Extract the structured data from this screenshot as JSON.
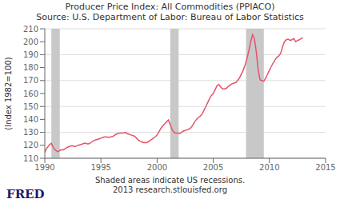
{
  "chart_data": {
    "type": "line",
    "title": "Producer Price Index: All Commodities (PPIACO)",
    "subtitle": "Source: U.S. Department of Labor: Bureau of Labor Statistics",
    "y_label": "(Index 1982=100)",
    "annotations": [
      "Shaded areas indicate US recessions.",
      "2013 research.stlouisfed.org",
      "FRED"
    ],
    "xlim": [
      1990,
      2015
    ],
    "ylim": [
      110,
      210
    ],
    "xticks": [
      1990,
      1995,
      2000,
      2005,
      2010,
      2015
    ],
    "yticks": [
      110,
      120,
      130,
      140,
      150,
      160,
      170,
      180,
      190,
      200,
      210
    ],
    "grid": true,
    "color": "#e8526a",
    "recession_color": "#c8c8c8",
    "recession_bands": [
      [
        1990.583,
        1991.333
      ],
      [
        2001.167,
        2001.917
      ],
      [
        2007.917,
        2009.5
      ]
    ],
    "x": [
      1990.0,
      1990.083,
      1990.167,
      1990.25,
      1990.333,
      1990.417,
      1990.5,
      1990.583,
      1990.667,
      1990.75,
      1990.833,
      1990.917,
      1991.0,
      1991.083,
      1991.167,
      1991.25,
      1991.333,
      1991.417,
      1991.5,
      1991.667,
      1991.75,
      1991.833,
      1991.917,
      1992.0,
      1992.167,
      1992.333,
      1992.5,
      1992.667,
      1992.833,
      1993.0,
      1993.167,
      1993.333,
      1993.5,
      1993.667,
      1993.833,
      1994.0,
      1994.167,
      1994.333,
      1994.5,
      1994.667,
      1994.833,
      1995.0,
      1995.167,
      1995.333,
      1995.5,
      1995.667,
      1995.833,
      1996.0,
      1996.167,
      1996.333,
      1996.5,
      1996.667,
      1996.833,
      1997.0,
      1997.167,
      1997.333,
      1997.5,
      1997.667,
      1997.833,
      1998.0,
      1998.167,
      1998.333,
      1998.5,
      1998.667,
      1998.833,
      1999.0,
      1999.167,
      1999.333,
      1999.5,
      1999.667,
      1999.833,
      2000.0,
      2000.167,
      2000.333,
      2000.5,
      2000.667,
      2000.833,
      2001.0,
      2001.167,
      2001.333,
      2001.5,
      2001.667,
      2001.833,
      2002.0,
      2002.167,
      2002.333,
      2002.5,
      2002.667,
      2002.833,
      2003.0,
      2003.167,
      2003.333,
      2003.5,
      2003.667,
      2003.833,
      2004.0,
      2004.167,
      2004.333,
      2004.5,
      2004.667,
      2004.833,
      2005.0,
      2005.167,
      2005.333,
      2005.5,
      2005.667,
      2005.833,
      2006.0,
      2006.167,
      2006.333,
      2006.5,
      2006.667,
      2006.833,
      2007.0,
      2007.167,
      2007.333,
      2007.5,
      2007.667,
      2007.833,
      2008.0,
      2008.167,
      2008.333,
      2008.5,
      2008.667,
      2008.833,
      2009.0,
      2009.167,
      2009.333,
      2009.5,
      2009.667,
      2009.833,
      2010.0,
      2010.167,
      2010.333,
      2010.5,
      2010.667,
      2010.833,
      2011.0,
      2011.167,
      2011.333,
      2011.5,
      2011.667,
      2011.833,
      2012.0,
      2012.167,
      2012.333,
      2012.5,
      2012.667,
      2012.833,
      2013.0
    ],
    "values": [
      114.5,
      116.5,
      117.5,
      118.5,
      119.5,
      120.5,
      121.0,
      121.5,
      120.0,
      118.5,
      117.5,
      116.5,
      116.0,
      115.5,
      115.0,
      115.5,
      116.0,
      116.5,
      116.5,
      116.5,
      117.0,
      117.5,
      118.0,
      118.5,
      119.0,
      119.5,
      119.5,
      119.0,
      119.5,
      120.0,
      120.5,
      121.0,
      121.5,
      121.5,
      121.0,
      121.5,
      122.5,
      123.5,
      124.0,
      124.5,
      125.0,
      125.5,
      126.0,
      126.5,
      126.5,
      126.0,
      126.5,
      126.5,
      127.5,
      128.5,
      129.0,
      129.5,
      129.5,
      129.5,
      130.0,
      129.0,
      128.5,
      128.0,
      127.5,
      127.0,
      125.5,
      124.0,
      123.0,
      122.5,
      122.0,
      122.0,
      122.5,
      123.5,
      124.5,
      125.5,
      126.5,
      128.0,
      130.5,
      133.0,
      135.0,
      136.5,
      138.0,
      139.5,
      136.0,
      132.0,
      130.0,
      129.5,
      129.5,
      129.0,
      130.0,
      131.0,
      131.5,
      132.0,
      132.5,
      133.5,
      135.5,
      138.0,
      140.0,
      141.5,
      142.5,
      144.0,
      147.0,
      150.0,
      153.0,
      156.0,
      158.5,
      160.0,
      163.0,
      166.0,
      167.0,
      165.0,
      163.5,
      163.5,
      164.0,
      165.5,
      166.5,
      167.5,
      168.0,
      168.5,
      170.0,
      172.0,
      175.0,
      178.0,
      182.0,
      187.0,
      193.0,
      200.0,
      205.5,
      202.0,
      192.0,
      178.0,
      170.5,
      170.0,
      169.5,
      172.0,
      175.0,
      178.0,
      181.0,
      183.5,
      186.0,
      188.0,
      189.0,
      191.0,
      196.0,
      200.0,
      201.5,
      202.0,
      201.0,
      201.5,
      202.5,
      200.0,
      201.0,
      201.5,
      202.5,
      203.0
    ]
  }
}
